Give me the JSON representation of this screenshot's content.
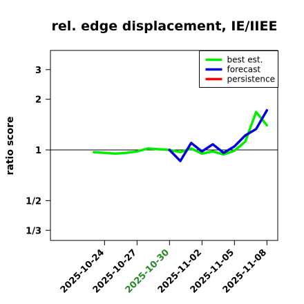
{
  "chart_data": {
    "type": "line",
    "title": "rel. edge displacement, IE/IIEE",
    "xlabel": "",
    "ylabel": "ratio score",
    "y_scale": "log",
    "ylim": [
      0.29,
      3.9
    ],
    "xlim": [
      "2025-10-19",
      "2025-11-09"
    ],
    "y_ticks": [
      {
        "value": 3,
        "label": "3"
      },
      {
        "value": 2,
        "label": "2"
      },
      {
        "value": 1,
        "label": "1"
      },
      {
        "value": 0.5,
        "label": "1/2"
      },
      {
        "value": 0.3333,
        "label": "1/3"
      }
    ],
    "x_ticks": [
      {
        "date": "2025-10-24",
        "label": "2025-10-24",
        "color": "#000000"
      },
      {
        "date": "2025-10-27",
        "label": "2025-10-27",
        "color": "#000000"
      },
      {
        "date": "2025-10-30",
        "label": "2025-10-30",
        "color": "#228B22"
      },
      {
        "date": "2025-11-02",
        "label": "2025-11-02",
        "color": "#000000"
      },
      {
        "date": "2025-11-05",
        "label": "2025-11-05",
        "color": "#000000"
      },
      {
        "date": "2025-11-08",
        "label": "2025-11-08",
        "color": "#000000"
      }
    ],
    "reference_line": 1,
    "grid": false,
    "legend_position": "top-right",
    "series": [
      {
        "name": "best est.",
        "color": "#00ee00",
        "points": [
          {
            "x": "2025-10-23",
            "y": 0.97
          },
          {
            "x": "2025-10-24",
            "y": 0.96
          },
          {
            "x": "2025-10-25",
            "y": 0.95
          },
          {
            "x": "2025-10-26",
            "y": 0.96
          },
          {
            "x": "2025-10-27",
            "y": 0.98
          },
          {
            "x": "2025-10-28",
            "y": 1.02
          },
          {
            "x": "2025-10-29",
            "y": 1.01
          },
          {
            "x": "2025-10-30",
            "y": 1.0
          },
          {
            "x": "2025-10-31",
            "y": 0.97
          },
          {
            "x": "2025-11-01",
            "y": 1.02
          },
          {
            "x": "2025-11-02",
            "y": 0.95
          },
          {
            "x": "2025-11-03",
            "y": 0.98
          },
          {
            "x": "2025-11-04",
            "y": 0.94
          },
          {
            "x": "2025-11-05",
            "y": 0.99
          },
          {
            "x": "2025-11-06",
            "y": 1.12
          },
          {
            "x": "2025-11-07",
            "y": 1.68
          },
          {
            "x": "2025-11-08",
            "y": 1.4
          }
        ]
      },
      {
        "name": "forecast",
        "color": "#0000dd",
        "points": [
          {
            "x": "2025-10-30",
            "y": 1.0
          },
          {
            "x": "2025-10-31",
            "y": 0.86
          },
          {
            "x": "2025-11-01",
            "y": 1.1
          },
          {
            "x": "2025-11-02",
            "y": 0.98
          },
          {
            "x": "2025-11-03",
            "y": 1.08
          },
          {
            "x": "2025-11-04",
            "y": 0.96
          },
          {
            "x": "2025-11-05",
            "y": 1.05
          },
          {
            "x": "2025-11-06",
            "y": 1.22
          },
          {
            "x": "2025-11-07",
            "y": 1.33
          },
          {
            "x": "2025-11-08",
            "y": 1.72
          }
        ]
      },
      {
        "name": "persistence",
        "color": "#ff0000",
        "points": []
      }
    ]
  }
}
